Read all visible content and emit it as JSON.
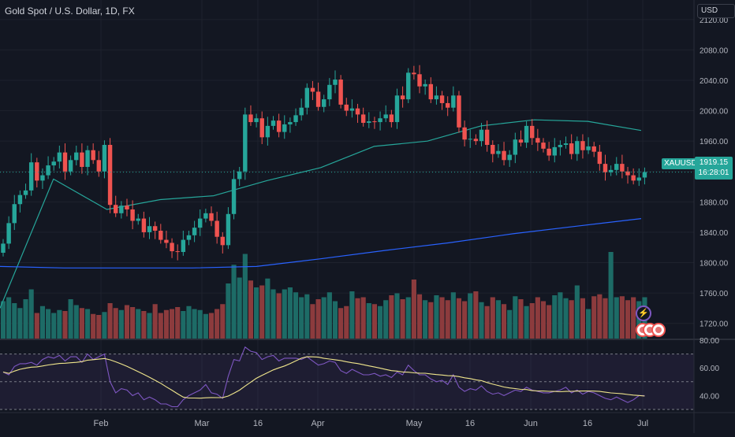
{
  "header": {
    "title": "Gold Spot / U.S. Dollar, 1D, FX",
    "currency": "USD"
  },
  "price_tag": {
    "symbol": "XAUUSD",
    "price": "1919.15",
    "countdown": "16:28:01"
  },
  "colors": {
    "background": "#131722",
    "up": "#26a69a",
    "down": "#ef5350",
    "volume_up": "#1d6b66",
    "volume_down": "#8c3b3d",
    "ma_fast": "#26a69a",
    "ma_slow": "#2962ff",
    "rsi_line": "#7e57c2",
    "rsi_ma": "#f0e68c"
  },
  "icons": [
    "flash-icon",
    "event-icon"
  ],
  "chart_data": {
    "type": "candlestick",
    "title": "Gold Spot / U.S. Dollar, 1D, FX",
    "y_axis": {
      "ticks": [
        "1720.00",
        "1760.00",
        "1800.00",
        "1840.00",
        "1880.00",
        "1920.00",
        "1960.00",
        "2000.00",
        "2040.00",
        "2080.00",
        "2120.00"
      ],
      "range": [
        1700,
        2125
      ]
    },
    "x_axis": {
      "labels": [
        "Feb",
        "Mar",
        "16",
        "Apr",
        "May",
        "16",
        "Jun",
        "16",
        "Jul"
      ]
    },
    "series": [
      {
        "name": "price",
        "values": [
          1825,
          1852,
          1877,
          1889,
          1895,
          1932,
          1908,
          1915,
          1928,
          1933,
          1945,
          1920,
          1935,
          1945,
          1926,
          1948,
          1935,
          1920,
          1955,
          1876,
          1865,
          1875,
          1870,
          1855,
          1858,
          1840,
          1848,
          1842,
          1830,
          1826,
          1815,
          1814,
          1830,
          1836,
          1846,
          1858,
          1865,
          1855,
          1834,
          1823,
          1864,
          1910,
          1920,
          1995,
          1985,
          1990,
          1965,
          1980,
          1987,
          1972,
          1982,
          1985,
          1994,
          2004,
          2030,
          2025,
          2005,
          2015,
          2034,
          2041,
          2008,
          2000,
          2003,
          1995,
          1984,
          1986,
          1985,
          1990,
          1995,
          1985,
          2020,
          2015,
          2050,
          2048,
          2032,
          2035,
          2015,
          2020,
          2010,
          2004,
          2020,
          1978,
          1962,
          1963,
          1960,
          1975,
          1955,
          1943,
          1947,
          1935,
          1942,
          1962,
          1958,
          1980,
          1964,
          1958,
          1950,
          1941,
          1952,
          1955,
          1957,
          1943,
          1960,
          1948,
          1953,
          1946,
          1930,
          1919,
          1922,
          1930,
          1920,
          1915,
          1908,
          1912,
          1919.15
        ]
      },
      {
        "name": "volume",
        "values": [
          380,
          420,
          360,
          310,
          400,
          500,
          260,
          330,
          300,
          260,
          290,
          280,
          400,
          340,
          310,
          300,
          250,
          240,
          270,
          360,
          310,
          290,
          340,
          320,
          300,
          280,
          260,
          350,
          260,
          290,
          300,
          320,
          280,
          330,
          300,
          290,
          250,
          260,
          300,
          350,
          560,
          750,
          620,
          860,
          590,
          520,
          540,
          610,
          500,
          460,
          500,
          520,
          470,
          420,
          450,
          350,
          400,
          420,
          470,
          380,
          310,
          330,
          480,
          410,
          420,
          360,
          350,
          330,
          390,
          440,
          460,
          400,
          420,
          600,
          450,
          390,
          370,
          440,
          420,
          390,
          470,
          410,
          380,
          460,
          480,
          370,
          330,
          420,
          390,
          350,
          290,
          430,
          400,
          330,
          360,
          420,
          380,
          340,
          440,
          470,
          410,
          390,
          540,
          410,
          300,
          430,
          450,
          410,
          880,
          420,
          430,
          390,
          420,
          380,
          420
        ]
      },
      {
        "name": "rsi",
        "values": [
          57,
          55,
          61,
          63,
          63,
          64,
          62,
          66,
          68,
          67,
          69,
          65,
          68,
          68,
          64,
          70,
          66,
          68,
          70,
          50,
          42,
          45,
          44,
          40,
          42,
          37,
          39,
          37,
          34,
          34,
          32,
          32,
          37,
          40,
          42,
          44,
          48,
          42,
          41,
          38,
          54,
          66,
          65,
          75,
          72,
          71,
          66,
          68,
          69,
          65,
          67,
          67,
          67,
          66,
          68,
          65,
          62,
          63,
          65,
          64,
          58,
          56,
          59,
          57,
          55,
          55,
          56,
          54,
          55,
          53,
          57,
          55,
          62,
          58,
          55,
          55,
          52,
          50,
          51,
          48,
          55,
          46,
          43,
          45,
          44,
          47,
          43,
          41,
          42,
          40,
          42,
          44,
          43,
          46,
          44,
          43,
          42,
          42,
          43,
          44,
          46,
          42,
          44,
          41,
          43,
          42,
          40,
          38,
          37,
          39,
          37,
          35,
          37,
          40,
          40
        ]
      },
      {
        "name": "ma_fast",
        "values": [
          1740,
          1910,
          1870,
          1883,
          1888,
          1908,
          1925,
          1953,
          1960,
          1980,
          1988,
          1986,
          1974
        ]
      },
      {
        "name": "ma_slow",
        "values": [
          1795,
          1793,
          1793,
          1793,
          1795,
          1805,
          1816,
          1826,
          1838,
          1848,
          1858
        ]
      }
    ],
    "rsi_axis": {
      "ticks": [
        "40.00",
        "60.00",
        "80.00"
      ],
      "range": [
        30,
        80
      ]
    }
  }
}
